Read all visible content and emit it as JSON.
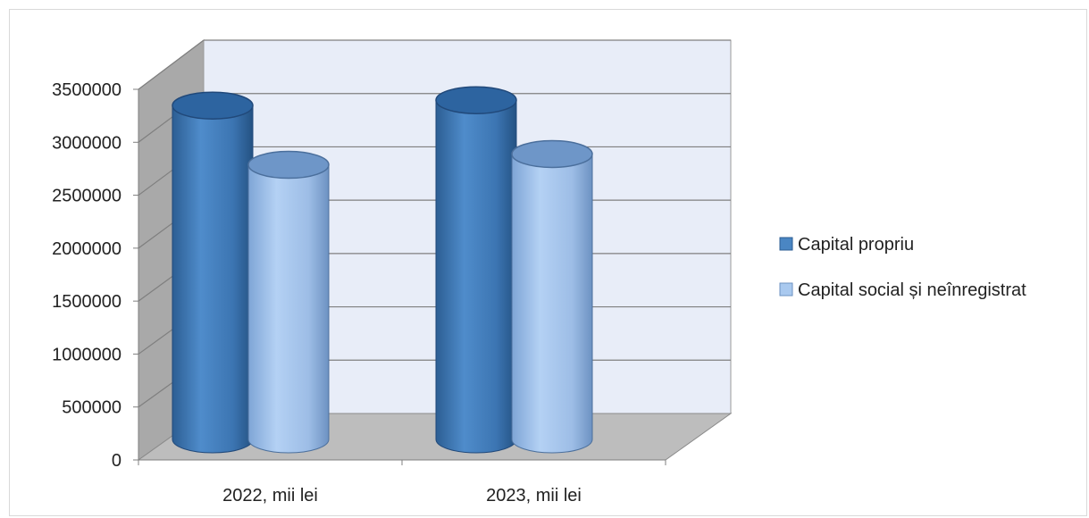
{
  "chart_data": {
    "type": "bar",
    "title": "",
    "xlabel": "",
    "ylabel": "",
    "categories": [
      "2022, mii lei",
      "2023, mii lei"
    ],
    "series": [
      {
        "name": "Capital propriu",
        "values": [
          3100000,
          3150000
        ],
        "color": "#4a86c3"
      },
      {
        "name": "Capital social și neînregistrat",
        "values": [
          2550000,
          2650000
        ],
        "color": "#a9c9ef"
      }
    ],
    "ylim": [
      0,
      3500000
    ],
    "yticks": [
      0,
      500000,
      1000000,
      1500000,
      2000000,
      2500000,
      3000000,
      3500000
    ],
    "grid": true,
    "legend_position": "right",
    "shape": "3d-cylinder"
  }
}
